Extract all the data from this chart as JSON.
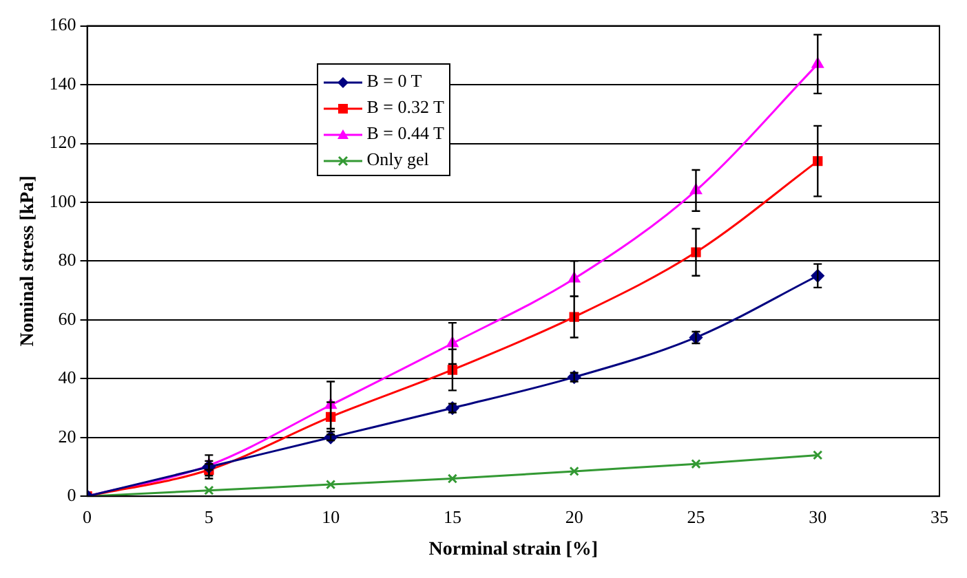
{
  "chart_data": {
    "type": "line",
    "xlabel": "Norminal strain [%]",
    "ylabel": "Nominal stress [kPa]",
    "x": [
      0,
      5,
      10,
      15,
      20,
      25,
      30
    ],
    "series": [
      {
        "name": "B = 0 T",
        "color": "#000080",
        "marker": "diamond",
        "values": [
          0,
          10,
          20,
          30,
          40.5,
          54,
          75
        ],
        "errors": [
          null,
          1,
          1,
          1.5,
          1.5,
          2,
          4
        ]
      },
      {
        "name": "B = 0.32 T",
        "color": "#ff0000",
        "marker": "square",
        "values": [
          0,
          9,
          27,
          43,
          61,
          83,
          114
        ],
        "errors": [
          null,
          3,
          5,
          7,
          7,
          8,
          12
        ]
      },
      {
        "name": "B = 0.44 T",
        "color": "#ff00ff",
        "marker": "triangle",
        "values": [
          0,
          10.5,
          31,
          52,
          74,
          104,
          147
        ],
        "errors": [
          null,
          3.5,
          8,
          7,
          6,
          7,
          10
        ]
      },
      {
        "name": "Only gel",
        "color": "#339933",
        "marker": "cross",
        "values": [
          0,
          2,
          4,
          6,
          8.5,
          11,
          14
        ]
      }
    ],
    "xlim": [
      0,
      35
    ],
    "xticks": [
      0,
      5,
      10,
      15,
      20,
      25,
      30,
      35
    ],
    "ylim": [
      0,
      160
    ],
    "yticks": [
      0,
      20,
      40,
      60,
      80,
      100,
      120,
      140,
      160
    ],
    "grid": "y",
    "legend": "top left"
  }
}
